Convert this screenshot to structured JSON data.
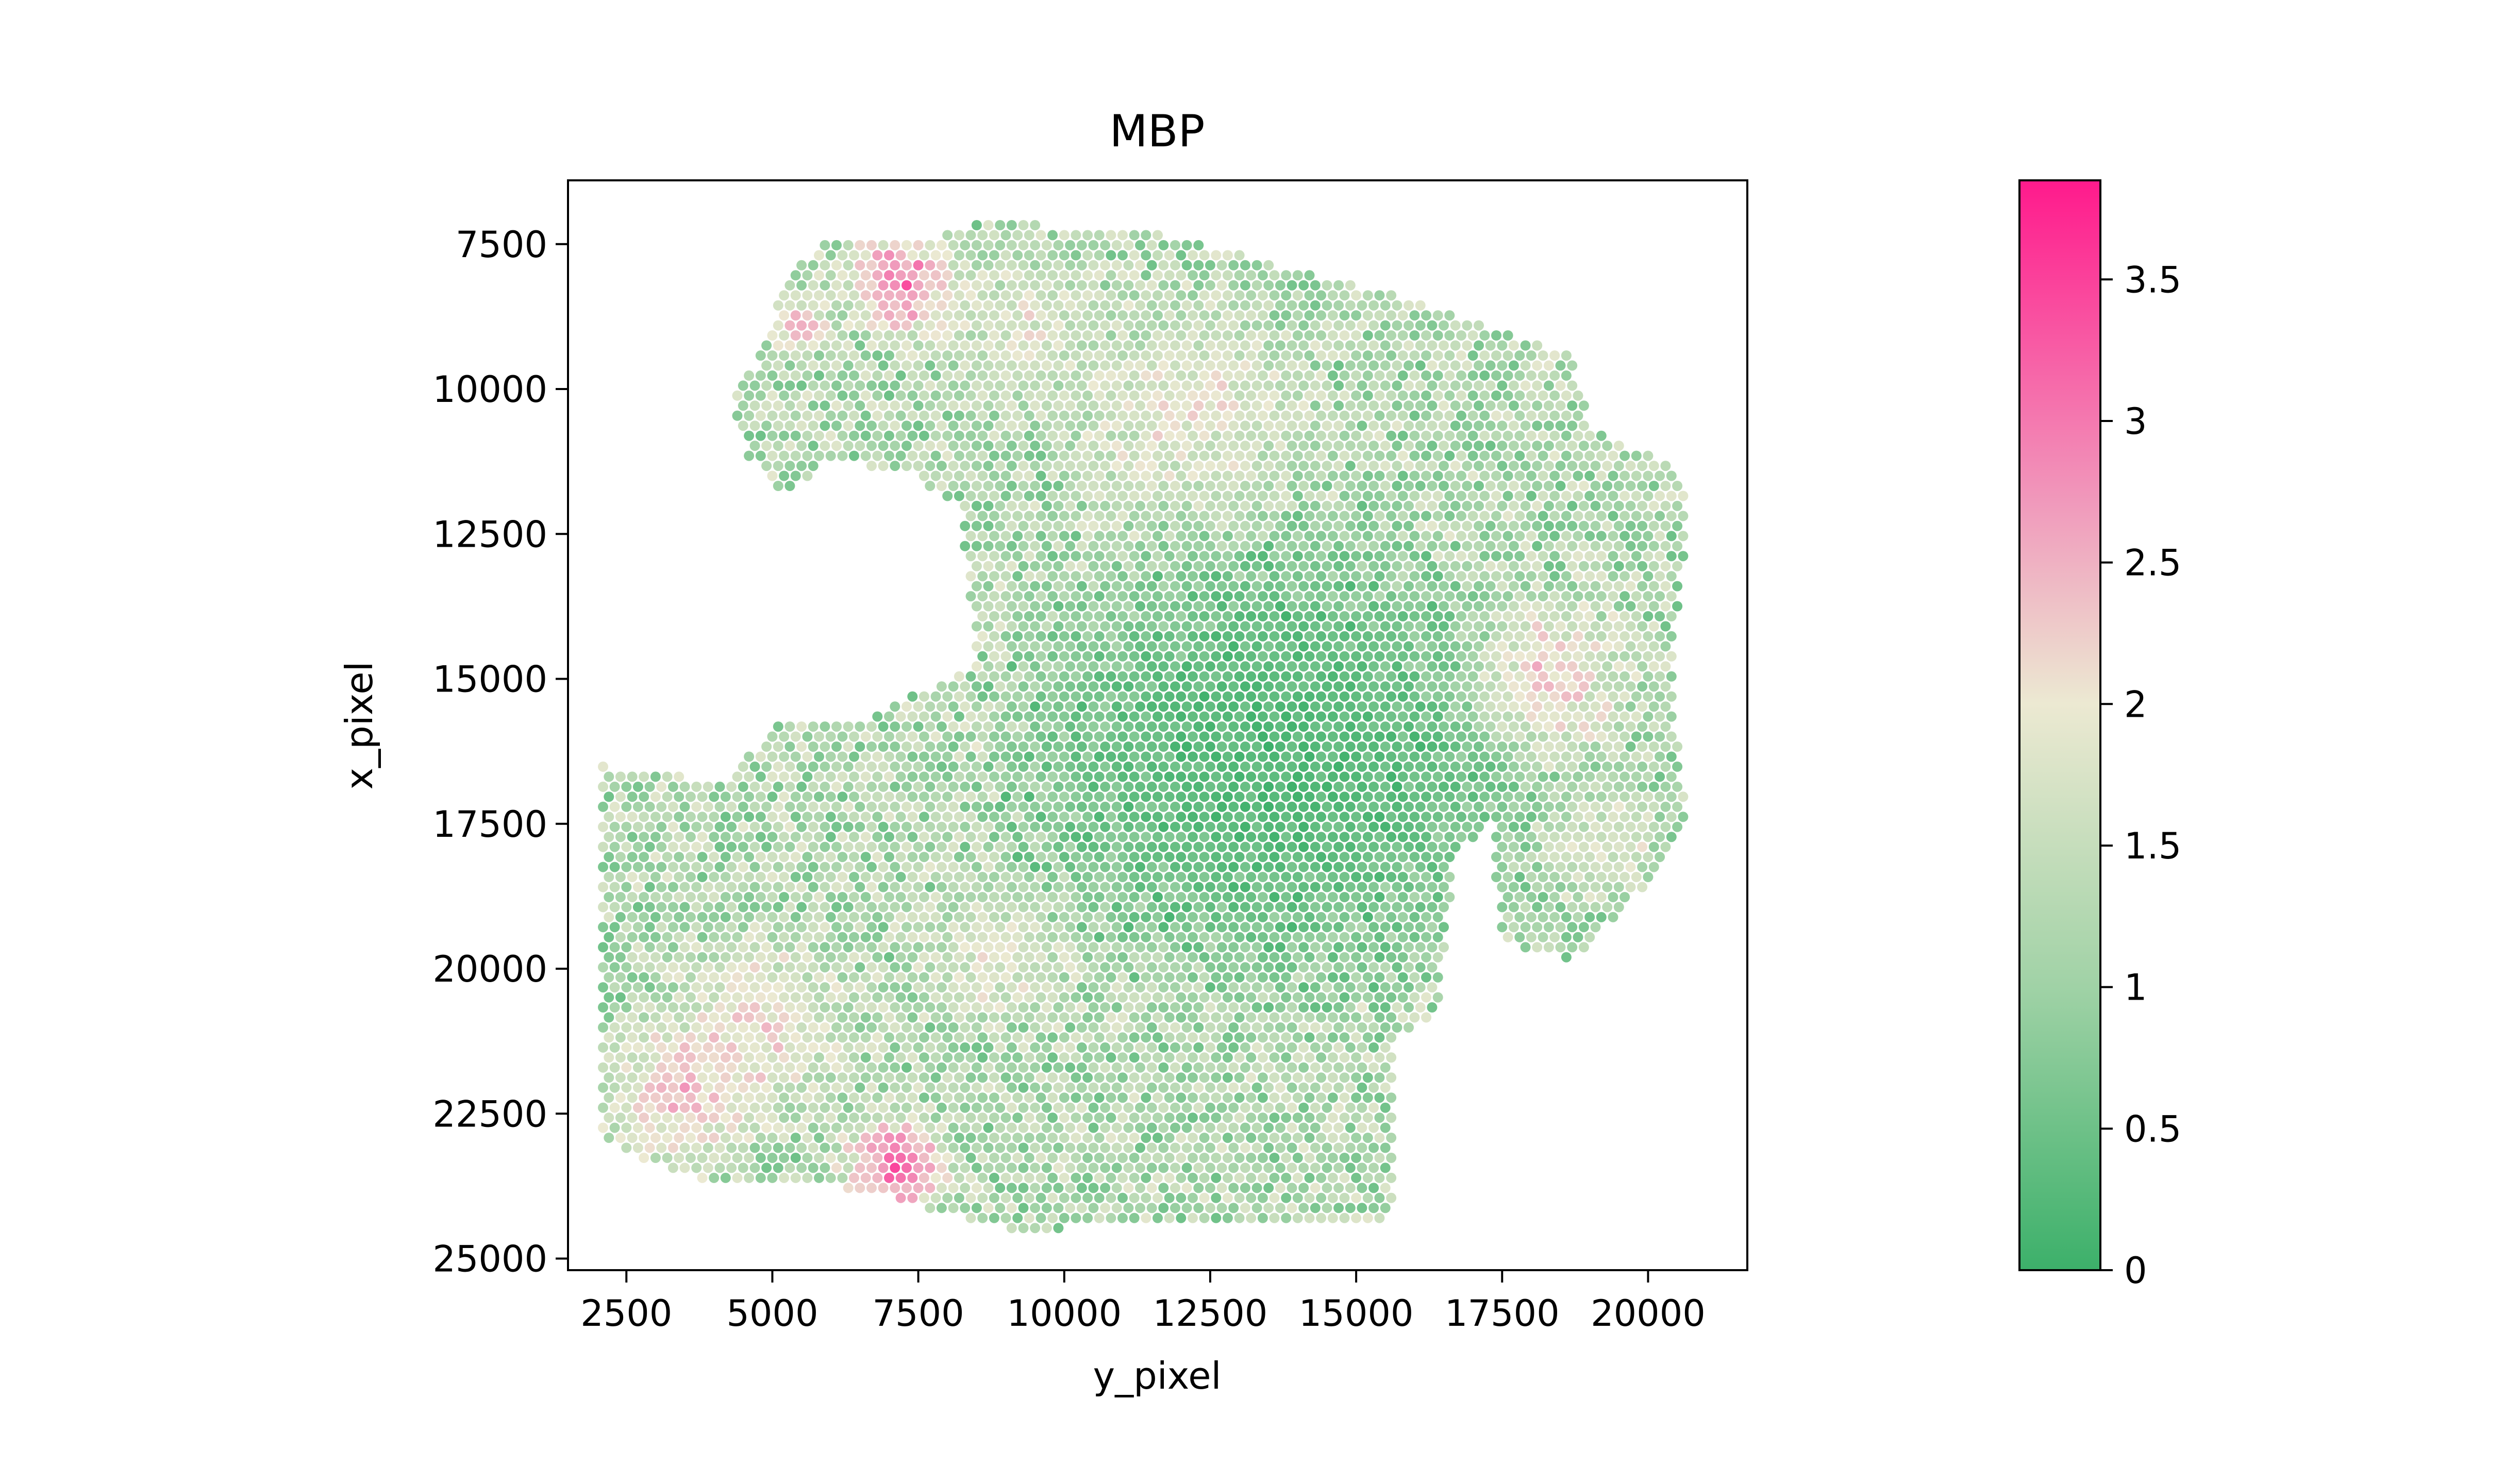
{
  "chart_data": {
    "type": "scatter",
    "title": "MBP",
    "xlabel": "y_pixel",
    "ylabel": "x_pixel",
    "xlim": [
      1500,
      21700
    ],
    "ylim": [
      25200,
      6400
    ],
    "y_inverted": true,
    "grid": false,
    "x_ticks": [
      "2500",
      "5000",
      "7500",
      "10000",
      "12500",
      "15000",
      "17500",
      "20000"
    ],
    "x_tick_values": [
      2500,
      5000,
      7500,
      10000,
      12500,
      15000,
      17500,
      20000
    ],
    "y_ticks": [
      "7500",
      "10000",
      "12500",
      "15000",
      "17500",
      "20000",
      "22500",
      "25000"
    ],
    "y_tick_values": [
      7500,
      10000,
      12500,
      15000,
      17500,
      20000,
      22500,
      25000
    ],
    "colorbar": {
      "range": [
        0,
        3.85
      ],
      "ticks": [
        "0",
        "0.5",
        "1",
        "1.5",
        "2",
        "2.5",
        "3",
        "3.5"
      ],
      "tick_values": [
        0,
        0.5,
        1,
        1.5,
        2,
        2.5,
        3,
        3.5
      ],
      "colors": [
        "#3cb06a",
        "#a0d2a6",
        "#ece9d2",
        "#f09bbc",
        "#ff1a8c"
      ],
      "placement": "right"
    },
    "spots": {
      "spacing_x": 200,
      "spacing_y": 173,
      "outline": [
        [
          4300,
          10100
        ],
        [
          4700,
          9600
        ],
        [
          5200,
          8200
        ],
        [
          5900,
          7350
        ],
        [
          7700,
          7400
        ],
        [
          8600,
          7100
        ],
        [
          11500,
          7300
        ],
        [
          15000,
          8200
        ],
        [
          17000,
          8800
        ],
        [
          18700,
          9400
        ],
        [
          19000,
          10700
        ],
        [
          20400,
          11300
        ],
        [
          20700,
          12000
        ],
        [
          20500,
          13800
        ],
        [
          20400,
          15500
        ],
        [
          20700,
          17500
        ],
        [
          20300,
          18200
        ],
        [
          18700,
          19900
        ],
        [
          17500,
          19500
        ],
        [
          17300,
          17400
        ],
        [
          16700,
          18100
        ],
        [
          16400,
          20700
        ],
        [
          15700,
          21200
        ],
        [
          15600,
          24300
        ],
        [
          13000,
          24400
        ],
        [
          9000,
          24500
        ],
        [
          6500,
          23800
        ],
        [
          3500,
          23600
        ],
        [
          2100,
          23000
        ],
        [
          2100,
          16500
        ],
        [
          4200,
          16800
        ],
        [
          5000,
          15800
        ],
        [
          6500,
          15700
        ],
        [
          8500,
          14800
        ],
        [
          8200,
          12100
        ],
        [
          7500,
          11500
        ],
        [
          6000,
          11200
        ],
        [
          5200,
          11800
        ],
        [
          4600,
          11200
        ]
      ],
      "hotspots": [
        {
          "x": 7200,
          "y": 8200,
          "r": 1300,
          "value": 3.2
        },
        {
          "x": 5500,
          "y": 8900,
          "r": 700,
          "value": 2.6
        },
        {
          "x": 7100,
          "y": 23400,
          "r": 1200,
          "value": 3.4
        },
        {
          "x": 3500,
          "y": 22200,
          "r": 1800,
          "value": 2.6
        },
        {
          "x": 4800,
          "y": 21000,
          "r": 2000,
          "value": 2.2
        },
        {
          "x": 18300,
          "y": 15000,
          "r": 1800,
          "value": 2.4
        },
        {
          "x": 12200,
          "y": 10400,
          "r": 2600,
          "value": 2.0
        },
        {
          "x": 9200,
          "y": 9000,
          "r": 1800,
          "value": 1.9
        },
        {
          "x": 8800,
          "y": 19800,
          "r": 1500,
          "value": 2.0
        },
        {
          "x": 19200,
          "y": 17800,
          "r": 1300,
          "value": 1.9
        }
      ],
      "low_region": {
        "x": 13600,
        "y": 16400,
        "rx": 5200,
        "ry": 4600,
        "value": 0.25
      },
      "base_value": 1.2,
      "seed": 7
    }
  }
}
